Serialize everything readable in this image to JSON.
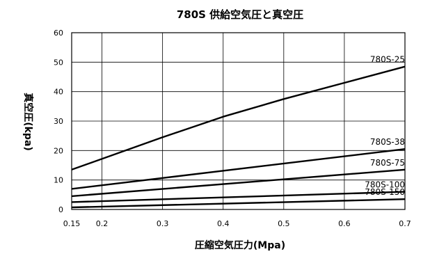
{
  "chart_data": {
    "type": "line",
    "title": "780S 供給空気圧と真空圧",
    "xlabel": "圧縮空気圧力(Mpa)",
    "ylabel": "真空圧(kpa)",
    "xlim": [
      0.15,
      0.7
    ],
    "ylim": [
      0,
      60
    ],
    "xticks": [
      0.15,
      0.2,
      0.3,
      0.4,
      0.5,
      0.6,
      0.7
    ],
    "xtick_labels": [
      "0.15",
      "0.2",
      "0.3",
      "0.4",
      "0.5",
      "0.6",
      "0.7"
    ],
    "yticks": [
      0,
      10,
      20,
      30,
      40,
      50,
      60
    ],
    "ytick_labels": [
      "0",
      "10",
      "20",
      "30",
      "40",
      "50",
      "60"
    ],
    "grid": true,
    "series": [
      {
        "name": "780S-25",
        "x": [
          0.15,
          0.3,
          0.4,
          0.5,
          0.6,
          0.7
        ],
        "y": [
          13.5,
          24.5,
          31.5,
          37.5,
          43,
          48.5
        ]
      },
      {
        "name": "780S-38",
        "x": [
          0.15,
          0.7
        ],
        "y": [
          7,
          20.5
        ]
      },
      {
        "name": "780S-75",
        "x": [
          0.15,
          0.7
        ],
        "y": [
          4.5,
          13.5
        ]
      },
      {
        "name": "780S-100",
        "x": [
          0.15,
          0.7
        ],
        "y": [
          2.5,
          6
        ]
      },
      {
        "name": "780S-150",
        "x": [
          0.15,
          0.7
        ],
        "y": [
          0.7,
          3.5
        ]
      }
    ]
  }
}
